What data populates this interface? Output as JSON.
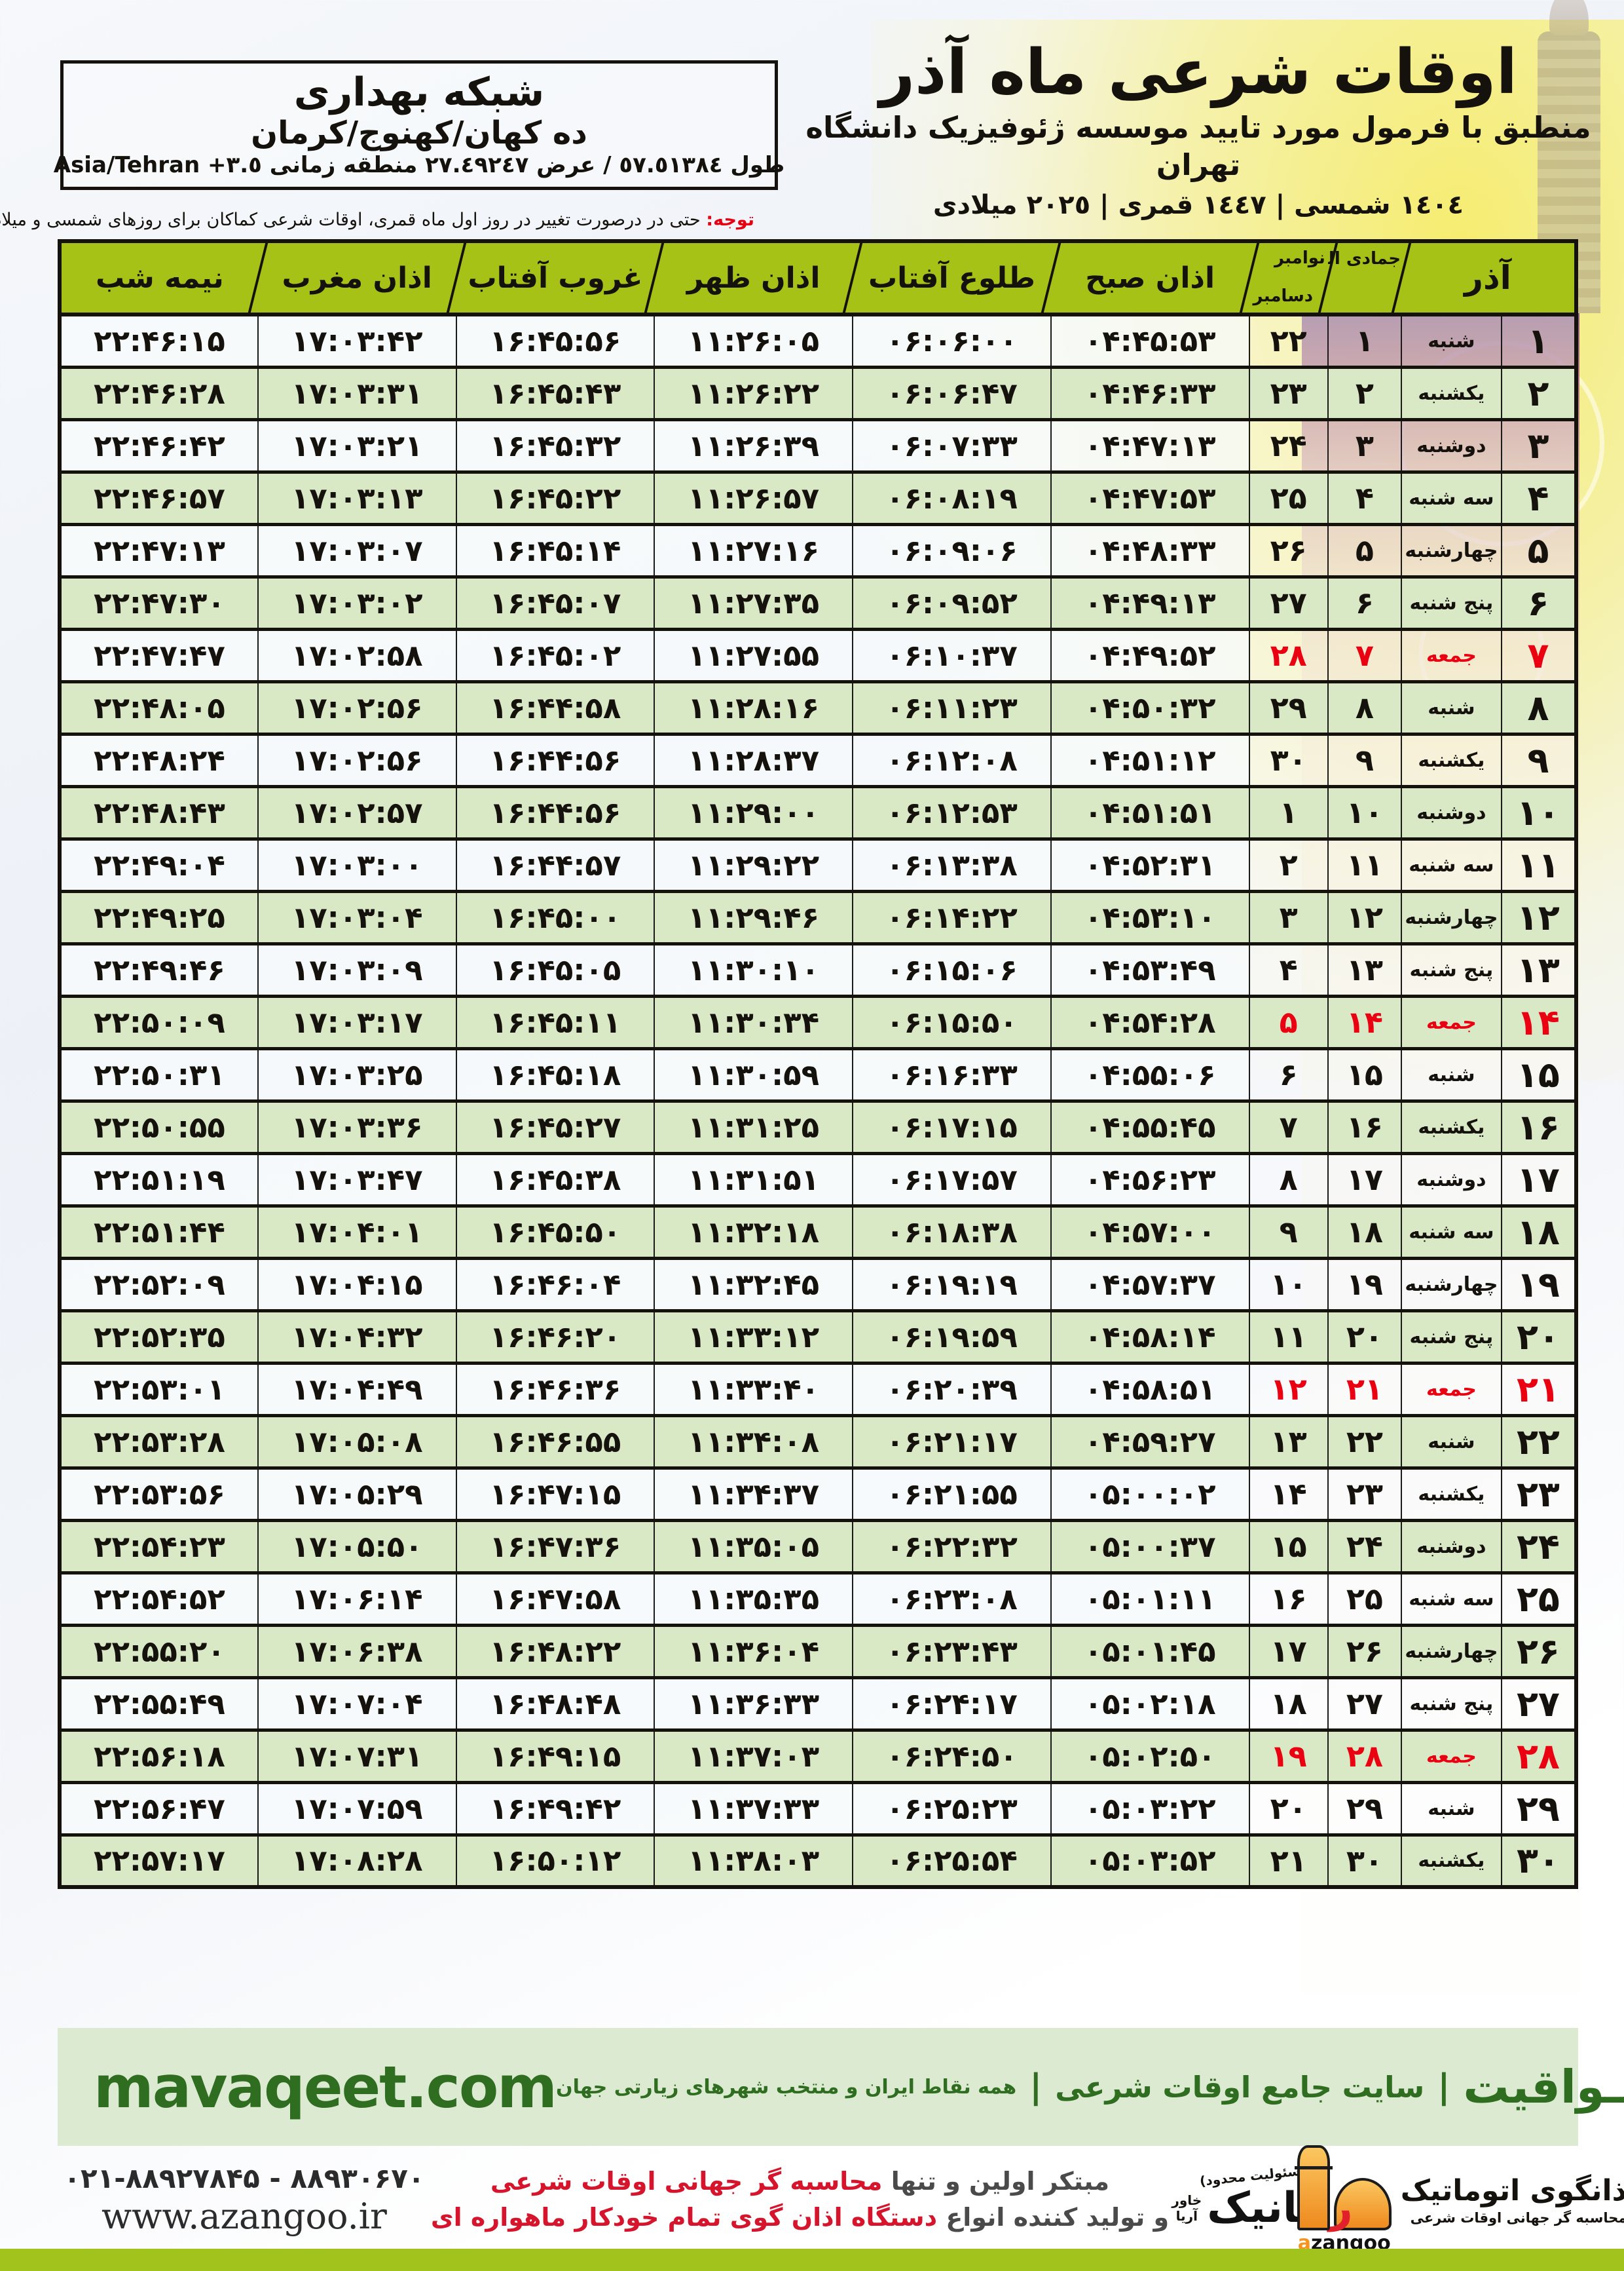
{
  "colors": {
    "header_green": "#a6c216",
    "row_green": "#d9e8c5",
    "friday_red": "#ea0011",
    "banner_bg": "#dcead2",
    "banner_text": "#2f6d20",
    "bottom_bar": "#a2c31b",
    "logo_orange": "#f7941d",
    "slogan_red": "#d6142c"
  },
  "location_box": {
    "org": "شبکه بهداری",
    "place": "ده کهان/کهنوج/کرمان",
    "coords_fa": "طول ٥٧.٥١٣٨٤ / عرض ٢٧.٤٩٢٤٧ منطقه زمانی",
    "coords_en": "Asia/Tehran +٣.٥"
  },
  "title_block": {
    "title": "اوقات شرعی ماه آذر",
    "subtitle": "منطبق با فرمول مورد تایید موسسه ژئوفیزیک دانشگاه تهران",
    "era_line": "١٤٠٤ شمسی | ١٤٤٧ قمری | ٢٠٢٥ میلادی"
  },
  "note": {
    "label": "توجه:",
    "text": " حتی در درصورت تغییر در روز اول ماه قمری، اوقات شرعی کماکان برای روزهای شمسی و میلادی معتبر است."
  },
  "table": {
    "headers": {
      "azar": "آذر",
      "hijri": "جمادی الثانی",
      "greg_top": "نوامبر",
      "greg_bottom": "دسامبر",
      "fajr": "اذان صبح",
      "sunrise": "طلوع آفتاب",
      "dhuhr": "اذان ظهر",
      "sunset": "غروب آفتاب",
      "maghrib": "اذان مغرب",
      "midnight": "نیمه شب"
    },
    "col_keys": [
      "azar",
      "weekday",
      "hijri",
      "greg",
      "fajr",
      "sunrise",
      "dhuhr",
      "sunset",
      "maghrib",
      "midnight"
    ],
    "rows": [
      {
        "azar": "۱",
        "weekday": "شنبه",
        "hijri": "۱",
        "greg": "۲۲",
        "fajr": "۰۴:۴۵:۵۳",
        "sunrise": "۰۶:۰۶:۰۰",
        "dhuhr": "۱۱:۲۶:۰۵",
        "sunset": "۱۶:۴۵:۵۶",
        "maghrib": "۱۷:۰۳:۴۲",
        "midnight": "۲۲:۴۶:۱۵",
        "friday": false
      },
      {
        "azar": "۲",
        "weekday": "یکشنبه",
        "hijri": "۲",
        "greg": "۲۳",
        "fajr": "۰۴:۴۶:۳۳",
        "sunrise": "۰۶:۰۶:۴۷",
        "dhuhr": "۱۱:۲۶:۲۲",
        "sunset": "۱۶:۴۵:۴۳",
        "maghrib": "۱۷:۰۳:۳۱",
        "midnight": "۲۲:۴۶:۲۸",
        "friday": false
      },
      {
        "azar": "۳",
        "weekday": "دوشنبه",
        "hijri": "۳",
        "greg": "۲۴",
        "fajr": "۰۴:۴۷:۱۳",
        "sunrise": "۰۶:۰۷:۳۳",
        "dhuhr": "۱۱:۲۶:۳۹",
        "sunset": "۱۶:۴۵:۳۲",
        "maghrib": "۱۷:۰۳:۲۱",
        "midnight": "۲۲:۴۶:۴۲",
        "friday": false
      },
      {
        "azar": "۴",
        "weekday": "سه شنبه",
        "hijri": "۴",
        "greg": "۲۵",
        "fajr": "۰۴:۴۷:۵۳",
        "sunrise": "۰۶:۰۸:۱۹",
        "dhuhr": "۱۱:۲۶:۵۷",
        "sunset": "۱۶:۴۵:۲۲",
        "maghrib": "۱۷:۰۳:۱۳",
        "midnight": "۲۲:۴۶:۵۷",
        "friday": false
      },
      {
        "azar": "۵",
        "weekday": "چهارشنبه",
        "hijri": "۵",
        "greg": "۲۶",
        "fajr": "۰۴:۴۸:۳۳",
        "sunrise": "۰۶:۰۹:۰۶",
        "dhuhr": "۱۱:۲۷:۱۶",
        "sunset": "۱۶:۴۵:۱۴",
        "maghrib": "۱۷:۰۳:۰۷",
        "midnight": "۲۲:۴۷:۱۳",
        "friday": false
      },
      {
        "azar": "۶",
        "weekday": "پنج شنبه",
        "hijri": "۶",
        "greg": "۲۷",
        "fajr": "۰۴:۴۹:۱۳",
        "sunrise": "۰۶:۰۹:۵۲",
        "dhuhr": "۱۱:۲۷:۳۵",
        "sunset": "۱۶:۴۵:۰۷",
        "maghrib": "۱۷:۰۳:۰۲",
        "midnight": "۲۲:۴۷:۳۰",
        "friday": false
      },
      {
        "azar": "۷",
        "weekday": "جمعه",
        "hijri": "۷",
        "greg": "۲۸",
        "fajr": "۰۴:۴۹:۵۲",
        "sunrise": "۰۶:۱۰:۳۷",
        "dhuhr": "۱۱:۲۷:۵۵",
        "sunset": "۱۶:۴۵:۰۲",
        "maghrib": "۱۷:۰۲:۵۸",
        "midnight": "۲۲:۴۷:۴۷",
        "friday": true
      },
      {
        "azar": "۸",
        "weekday": "شنبه",
        "hijri": "۸",
        "greg": "۲۹",
        "fajr": "۰۴:۵۰:۳۲",
        "sunrise": "۰۶:۱۱:۲۳",
        "dhuhr": "۱۱:۲۸:۱۶",
        "sunset": "۱۶:۴۴:۵۸",
        "maghrib": "۱۷:۰۲:۵۶",
        "midnight": "۲۲:۴۸:۰۵",
        "friday": false
      },
      {
        "azar": "۹",
        "weekday": "یکشنبه",
        "hijri": "۹",
        "greg": "۳۰",
        "fajr": "۰۴:۵۱:۱۲",
        "sunrise": "۰۶:۱۲:۰۸",
        "dhuhr": "۱۱:۲۸:۳۷",
        "sunset": "۱۶:۴۴:۵۶",
        "maghrib": "۱۷:۰۲:۵۶",
        "midnight": "۲۲:۴۸:۲۴",
        "friday": false
      },
      {
        "azar": "۱۰",
        "weekday": "دوشنبه",
        "hijri": "۱۰",
        "greg": "۱",
        "fajr": "۰۴:۵۱:۵۱",
        "sunrise": "۰۶:۱۲:۵۳",
        "dhuhr": "۱۱:۲۹:۰۰",
        "sunset": "۱۶:۴۴:۵۶",
        "maghrib": "۱۷:۰۲:۵۷",
        "midnight": "۲۲:۴۸:۴۳",
        "friday": false
      },
      {
        "azar": "۱۱",
        "weekday": "سه شنبه",
        "hijri": "۱۱",
        "greg": "۲",
        "fajr": "۰۴:۵۲:۳۱",
        "sunrise": "۰۶:۱۳:۳۸",
        "dhuhr": "۱۱:۲۹:۲۲",
        "sunset": "۱۶:۴۴:۵۷",
        "maghrib": "۱۷:۰۳:۰۰",
        "midnight": "۲۲:۴۹:۰۴",
        "friday": false
      },
      {
        "azar": "۱۲",
        "weekday": "چهارشنبه",
        "hijri": "۱۲",
        "greg": "۳",
        "fajr": "۰۴:۵۳:۱۰",
        "sunrise": "۰۶:۱۴:۲۲",
        "dhuhr": "۱۱:۲۹:۴۶",
        "sunset": "۱۶:۴۵:۰۰",
        "maghrib": "۱۷:۰۳:۰۴",
        "midnight": "۲۲:۴۹:۲۵",
        "friday": false
      },
      {
        "azar": "۱۳",
        "weekday": "پنج شنبه",
        "hijri": "۱۳",
        "greg": "۴",
        "fajr": "۰۴:۵۳:۴۹",
        "sunrise": "۰۶:۱۵:۰۶",
        "dhuhr": "۱۱:۳۰:۱۰",
        "sunset": "۱۶:۴۵:۰۵",
        "maghrib": "۱۷:۰۳:۰۹",
        "midnight": "۲۲:۴۹:۴۶",
        "friday": false
      },
      {
        "azar": "۱۴",
        "weekday": "جمعه",
        "hijri": "۱۴",
        "greg": "۵",
        "fajr": "۰۴:۵۴:۲۸",
        "sunrise": "۰۶:۱۵:۵۰",
        "dhuhr": "۱۱:۳۰:۳۴",
        "sunset": "۱۶:۴۵:۱۱",
        "maghrib": "۱۷:۰۳:۱۷",
        "midnight": "۲۲:۵۰:۰۹",
        "friday": true
      },
      {
        "azar": "۱۵",
        "weekday": "شنبه",
        "hijri": "۱۵",
        "greg": "۶",
        "fajr": "۰۴:۵۵:۰۶",
        "sunrise": "۰۶:۱۶:۳۳",
        "dhuhr": "۱۱:۳۰:۵۹",
        "sunset": "۱۶:۴۵:۱۸",
        "maghrib": "۱۷:۰۳:۲۵",
        "midnight": "۲۲:۵۰:۳۱",
        "friday": false
      },
      {
        "azar": "۱۶",
        "weekday": "یکشنبه",
        "hijri": "۱۶",
        "greg": "۷",
        "fajr": "۰۴:۵۵:۴۵",
        "sunrise": "۰۶:۱۷:۱۵",
        "dhuhr": "۱۱:۳۱:۲۵",
        "sunset": "۱۶:۴۵:۲۷",
        "maghrib": "۱۷:۰۳:۳۶",
        "midnight": "۲۲:۵۰:۵۵",
        "friday": false
      },
      {
        "azar": "۱۷",
        "weekday": "دوشنبه",
        "hijri": "۱۷",
        "greg": "۸",
        "fajr": "۰۴:۵۶:۲۳",
        "sunrise": "۰۶:۱۷:۵۷",
        "dhuhr": "۱۱:۳۱:۵۱",
        "sunset": "۱۶:۴۵:۳۸",
        "maghrib": "۱۷:۰۳:۴۷",
        "midnight": "۲۲:۵۱:۱۹",
        "friday": false
      },
      {
        "azar": "۱۸",
        "weekday": "سه شنبه",
        "hijri": "۱۸",
        "greg": "۹",
        "fajr": "۰۴:۵۷:۰۰",
        "sunrise": "۰۶:۱۸:۳۸",
        "dhuhr": "۱۱:۳۲:۱۸",
        "sunset": "۱۶:۴۵:۵۰",
        "maghrib": "۱۷:۰۴:۰۱",
        "midnight": "۲۲:۵۱:۴۴",
        "friday": false
      },
      {
        "azar": "۱۹",
        "weekday": "چهارشنبه",
        "hijri": "۱۹",
        "greg": "۱۰",
        "fajr": "۰۴:۵۷:۳۷",
        "sunrise": "۰۶:۱۹:۱۹",
        "dhuhr": "۱۱:۳۲:۴۵",
        "sunset": "۱۶:۴۶:۰۴",
        "maghrib": "۱۷:۰۴:۱۵",
        "midnight": "۲۲:۵۲:۰۹",
        "friday": false
      },
      {
        "azar": "۲۰",
        "weekday": "پنج شنبه",
        "hijri": "۲۰",
        "greg": "۱۱",
        "fajr": "۰۴:۵۸:۱۴",
        "sunrise": "۰۶:۱۹:۵۹",
        "dhuhr": "۱۱:۳۳:۱۲",
        "sunset": "۱۶:۴۶:۲۰",
        "maghrib": "۱۷:۰۴:۳۲",
        "midnight": "۲۲:۵۲:۳۵",
        "friday": false
      },
      {
        "azar": "۲۱",
        "weekday": "جمعه",
        "hijri": "۲۱",
        "greg": "۱۲",
        "fajr": "۰۴:۵۸:۵۱",
        "sunrise": "۰۶:۲۰:۳۹",
        "dhuhr": "۱۱:۳۳:۴۰",
        "sunset": "۱۶:۴۶:۳۶",
        "maghrib": "۱۷:۰۴:۴۹",
        "midnight": "۲۲:۵۳:۰۱",
        "friday": true
      },
      {
        "azar": "۲۲",
        "weekday": "شنبه",
        "hijri": "۲۲",
        "greg": "۱۳",
        "fajr": "۰۴:۵۹:۲۷",
        "sunrise": "۰۶:۲۱:۱۷",
        "dhuhr": "۱۱:۳۴:۰۸",
        "sunset": "۱۶:۴۶:۵۵",
        "maghrib": "۱۷:۰۵:۰۸",
        "midnight": "۲۲:۵۳:۲۸",
        "friday": false
      },
      {
        "azar": "۲۳",
        "weekday": "یکشنبه",
        "hijri": "۲۳",
        "greg": "۱۴",
        "fajr": "۰۵:۰۰:۰۲",
        "sunrise": "۰۶:۲۱:۵۵",
        "dhuhr": "۱۱:۳۴:۳۷",
        "sunset": "۱۶:۴۷:۱۵",
        "maghrib": "۱۷:۰۵:۲۹",
        "midnight": "۲۲:۵۳:۵۶",
        "friday": false
      },
      {
        "azar": "۲۴",
        "weekday": "دوشنبه",
        "hijri": "۲۴",
        "greg": "۱۵",
        "fajr": "۰۵:۰۰:۳۷",
        "sunrise": "۰۶:۲۲:۳۲",
        "dhuhr": "۱۱:۳۵:۰۵",
        "sunset": "۱۶:۴۷:۳۶",
        "maghrib": "۱۷:۰۵:۵۰",
        "midnight": "۲۲:۵۴:۲۳",
        "friday": false
      },
      {
        "azar": "۲۵",
        "weekday": "سه شنبه",
        "hijri": "۲۵",
        "greg": "۱۶",
        "fajr": "۰۵:۰۱:۱۱",
        "sunrise": "۰۶:۲۳:۰۸",
        "dhuhr": "۱۱:۳۵:۳۵",
        "sunset": "۱۶:۴۷:۵۸",
        "maghrib": "۱۷:۰۶:۱۴",
        "midnight": "۲۲:۵۴:۵۲",
        "friday": false
      },
      {
        "azar": "۲۶",
        "weekday": "چهارشنبه",
        "hijri": "۲۶",
        "greg": "۱۷",
        "fajr": "۰۵:۰۱:۴۵",
        "sunrise": "۰۶:۲۳:۴۳",
        "dhuhr": "۱۱:۳۶:۰۴",
        "sunset": "۱۶:۴۸:۲۲",
        "maghrib": "۱۷:۰۶:۳۸",
        "midnight": "۲۲:۵۵:۲۰",
        "friday": false
      },
      {
        "azar": "۲۷",
        "weekday": "پنج شنبه",
        "hijri": "۲۷",
        "greg": "۱۸",
        "fajr": "۰۵:۰۲:۱۸",
        "sunrise": "۰۶:۲۴:۱۷",
        "dhuhr": "۱۱:۳۶:۳۳",
        "sunset": "۱۶:۴۸:۴۸",
        "maghrib": "۱۷:۰۷:۰۴",
        "midnight": "۲۲:۵۵:۴۹",
        "friday": false
      },
      {
        "azar": "۲۸",
        "weekday": "جمعه",
        "hijri": "۲۸",
        "greg": "۱۹",
        "fajr": "۰۵:۰۲:۵۰",
        "sunrise": "۰۶:۲۴:۵۰",
        "dhuhr": "۱۱:۳۷:۰۳",
        "sunset": "۱۶:۴۹:۱۵",
        "maghrib": "۱۷:۰۷:۳۱",
        "midnight": "۲۲:۵۶:۱۸",
        "friday": true
      },
      {
        "azar": "۲۹",
        "weekday": "شنبه",
        "hijri": "۲۹",
        "greg": "۲۰",
        "fajr": "۰۵:۰۳:۲۲",
        "sunrise": "۰۶:۲۵:۲۳",
        "dhuhr": "۱۱:۳۷:۳۳",
        "sunset": "۱۶:۴۹:۴۲",
        "maghrib": "۱۷:۰۷:۵۹",
        "midnight": "۲۲:۵۶:۴۷",
        "friday": false
      },
      {
        "azar": "۳۰",
        "weekday": "یکشنبه",
        "hijri": "۳۰",
        "greg": "۲۱",
        "fajr": "۰۵:۰۳:۵۲",
        "sunrise": "۰۶:۲۵:۵۴",
        "dhuhr": "۱۱:۳۸:۰۳",
        "sunset": "۱۶:۵۰:۱۲",
        "maghrib": "۱۷:۰۸:۲۸",
        "midnight": "۲۲:۵۷:۱۷",
        "friday": false
      }
    ]
  },
  "banner": {
    "domain": "mavaqeet.com",
    "brand": "مـواقیت",
    "separator": "|",
    "site_desc": "سایت جامع اوقات شرعی",
    "tagline": "همه نقاط ایران و منتخب شهرهای زیارتی جهان"
  },
  "footer": {
    "phones": "۰۲۱-۸۸۹۲۷۸۴۵ - ۸۸۹۳۰۶۷۰",
    "website": "www.azangoo.ir",
    "slogan_line1_dark": "مبتکر اولین و تنها",
    "slogan_line1_red": "محاسبه گر جهانی اوقات شرعی",
    "slogan_line2_dark": "و تولید کننده انواع",
    "slogan_line2_red": "دستگاه اذان گوی تمام خودکار ماهواره ای",
    "rayanik": {
      "license": "(بامسئولیت محدود)",
      "name_first": "ر",
      "name_rest": "ایانیک",
      "sub1": "خاور",
      "sub2": "آریا"
    },
    "azangoo": {
      "title_first": "ا",
      "title_rest": "ذانگوی اتوماتیک",
      "sub": "محاسبه گر جهانی اوقات شرعی",
      "word_a": "a",
      "word_rest": "zangoo"
    }
  }
}
